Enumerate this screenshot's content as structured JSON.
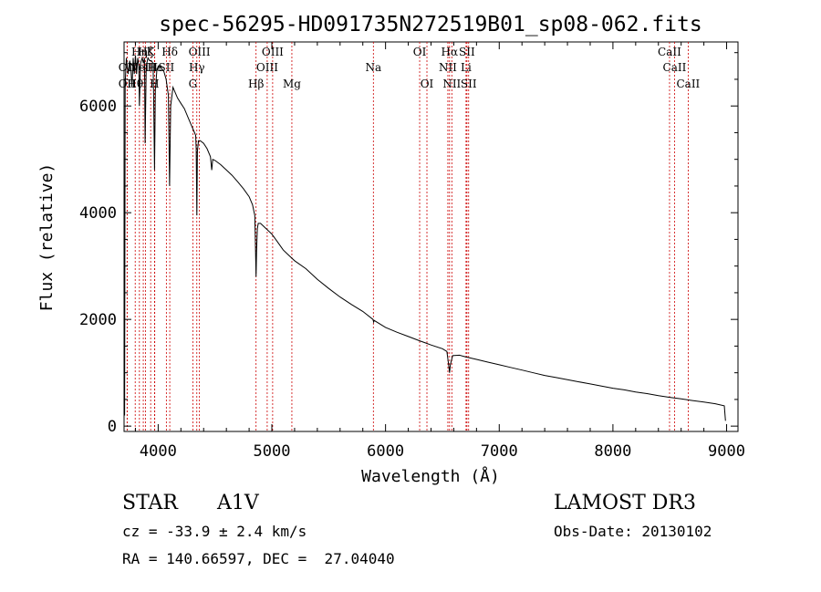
{
  "chart_data": {
    "type": "line",
    "title": "spec-56295-HD091735N272519B01_sp08-062.fits",
    "xlabel": "Wavelength (Å)",
    "ylabel": "Flux (relative)",
    "xlim": [
      3700,
      9100
    ],
    "ylim": [
      -100,
      7200
    ],
    "xticks": [
      4000,
      5000,
      6000,
      7000,
      8000,
      9000
    ],
    "xtick_labels": [
      "4000",
      "5000",
      "6000",
      "7000",
      "8000",
      "9000"
    ],
    "yticks": [
      0,
      2000,
      4000,
      6000
    ],
    "ytick_labels": [
      "0",
      "2000",
      "4000",
      "6000"
    ],
    "series": [
      {
        "name": "spectrum",
        "points": [
          [
            3700,
            2600
          ],
          [
            3705,
            200
          ],
          [
            3710,
            6400
          ],
          [
            3720,
            6900
          ],
          [
            3735,
            6600
          ],
          [
            3750,
            6850
          ],
          [
            3760,
            6700
          ],
          [
            3770,
            6350
          ],
          [
            3780,
            6900
          ],
          [
            3790,
            6600
          ],
          [
            3800,
            6950
          ],
          [
            3810,
            6600
          ],
          [
            3820,
            6900
          ],
          [
            3830,
            6750
          ],
          [
            3835,
            6000
          ],
          [
            3845,
            6800
          ],
          [
            3860,
            6900
          ],
          [
            3870,
            6800
          ],
          [
            3880,
            6900
          ],
          [
            3885,
            5300
          ],
          [
            3895,
            6750
          ],
          [
            3910,
            6900
          ],
          [
            3925,
            6850
          ],
          [
            3940,
            6850
          ],
          [
            3955,
            6800
          ],
          [
            3960,
            6200
          ],
          [
            3968,
            4800
          ],
          [
            3975,
            6300
          ],
          [
            3990,
            6700
          ],
          [
            4010,
            6750
          ],
          [
            4030,
            6700
          ],
          [
            4050,
            6650
          ],
          [
            4070,
            6500
          ],
          [
            4090,
            6200
          ],
          [
            4100,
            4500
          ],
          [
            4110,
            6000
          ],
          [
            4130,
            6350
          ],
          [
            4150,
            6250
          ],
          [
            4170,
            6150
          ],
          [
            4200,
            6050
          ],
          [
            4230,
            5950
          ],
          [
            4260,
            5800
          ],
          [
            4290,
            5650
          ],
          [
            4310,
            5550
          ],
          [
            4330,
            5450
          ],
          [
            4335,
            5200
          ],
          [
            4340,
            3950
          ],
          [
            4345,
            5150
          ],
          [
            4355,
            5350
          ],
          [
            4370,
            5350
          ],
          [
            4400,
            5300
          ],
          [
            4430,
            5200
          ],
          [
            4460,
            5050
          ],
          [
            4471,
            4800
          ],
          [
            4480,
            5000
          ],
          [
            4500,
            4980
          ],
          [
            4550,
            4900
          ],
          [
            4600,
            4800
          ],
          [
            4650,
            4700
          ],
          [
            4700,
            4580
          ],
          [
            4750,
            4450
          ],
          [
            4800,
            4300
          ],
          [
            4830,
            4150
          ],
          [
            4850,
            3950
          ],
          [
            4855,
            3500
          ],
          [
            4861,
            2800
          ],
          [
            4866,
            3300
          ],
          [
            4872,
            3700
          ],
          [
            4880,
            3800
          ],
          [
            4900,
            3800
          ],
          [
            4950,
            3700
          ],
          [
            5000,
            3600
          ],
          [
            5050,
            3450
          ],
          [
            5100,
            3300
          ],
          [
            5150,
            3200
          ],
          [
            5200,
            3100
          ],
          [
            5300,
            2950
          ],
          [
            5400,
            2750
          ],
          [
            5500,
            2580
          ],
          [
            5600,
            2420
          ],
          [
            5700,
            2280
          ],
          [
            5800,
            2150
          ],
          [
            5890,
            2000
          ],
          [
            5895,
            1950
          ],
          [
            5900,
            1980
          ],
          [
            6000,
            1850
          ],
          [
            6100,
            1760
          ],
          [
            6200,
            1680
          ],
          [
            6300,
            1600
          ],
          [
            6350,
            1560
          ],
          [
            6400,
            1520
          ],
          [
            6500,
            1450
          ],
          [
            6540,
            1400
          ],
          [
            6555,
            1150
          ],
          [
            6563,
            1000
          ],
          [
            6570,
            1150
          ],
          [
            6590,
            1320
          ],
          [
            6650,
            1330
          ],
          [
            6700,
            1300
          ],
          [
            6800,
            1250
          ],
          [
            6900,
            1200
          ],
          [
            7000,
            1150
          ],
          [
            7100,
            1100
          ],
          [
            7200,
            1050
          ],
          [
            7300,
            1000
          ],
          [
            7400,
            950
          ],
          [
            7500,
            910
          ],
          [
            7600,
            870
          ],
          [
            7700,
            830
          ],
          [
            7800,
            790
          ],
          [
            7900,
            750
          ],
          [
            8000,
            710
          ],
          [
            8100,
            680
          ],
          [
            8200,
            640
          ],
          [
            8300,
            610
          ],
          [
            8400,
            570
          ],
          [
            8500,
            540
          ],
          [
            8600,
            510
          ],
          [
            8700,
            480
          ],
          [
            8800,
            450
          ],
          [
            8900,
            420
          ],
          [
            8980,
            380
          ],
          [
            8990,
            100
          ]
        ]
      }
    ],
    "lines_top": [
      {
        "label": "Hα",
        "x": 6563,
        "row": 0
      },
      {
        "label": "SII",
        "x": 6716,
        "row": 0
      },
      {
        "label": "OI",
        "x": 6300,
        "row": 0
      },
      {
        "label": "OIII",
        "x": 5007,
        "row": 0
      },
      {
        "label": "Hδ",
        "x": 4102,
        "row": 0
      },
      {
        "label": "K",
        "x": 3934,
        "row": 0
      },
      {
        "label": "Hζ",
        "x": 3889,
        "row": 0
      },
      {
        "label": "CaII",
        "x": 8498,
        "row": 0
      },
      {
        "label": "OIII",
        "x": 4363,
        "row": 0
      },
      {
        "label": "Hη",
        "x": 3835,
        "row": 0
      }
    ],
    "lines_mid": [
      {
        "label": "OII",
        "x": 3727,
        "row": 1
      },
      {
        "label": "Hε",
        "x": 3970,
        "row": 1
      },
      {
        "label": "NeIII",
        "x": 3869,
        "row": 1
      },
      {
        "label": "SII",
        "x": 4072,
        "row": 1
      },
      {
        "label": "Hγ",
        "x": 4340,
        "row": 1
      },
      {
        "label": "OIII",
        "x": 4959,
        "row": 1
      },
      {
        "label": "Na",
        "x": 5893,
        "row": 1
      },
      {
        "label": "NII",
        "x": 6548,
        "row": 1
      },
      {
        "label": "Li",
        "x": 6708,
        "row": 1
      },
      {
        "label": "CaII",
        "x": 8542,
        "row": 1
      }
    ],
    "lines_low": [
      {
        "label": "OII",
        "x": 3727,
        "row": 2
      },
      {
        "label": "Hθ",
        "x": 3798,
        "row": 2
      },
      {
        "label": "H",
        "x": 3968,
        "row": 2
      },
      {
        "label": "G",
        "x": 4305,
        "row": 2
      },
      {
        "label": "Hβ",
        "x": 4861,
        "row": 2
      },
      {
        "label": "Mg",
        "x": 5176,
        "row": 2
      },
      {
        "label": "OI",
        "x": 6364,
        "row": 2
      },
      {
        "label": "NII",
        "x": 6583,
        "row": 2
      },
      {
        "label": "SII",
        "x": 6731,
        "row": 2
      },
      {
        "label": "CaII",
        "x": 8662,
        "row": 2
      }
    ]
  },
  "info": {
    "class": "STAR",
    "subclass": "A1V",
    "survey": "LAMOST DR3",
    "cz": "cz = -33.9 ± 2.4 km/s",
    "obs_date": "Obs-Date: 20130102",
    "radec": "RA = 140.66597, DEC =  27.04040"
  },
  "colors": {
    "axis": "#000000",
    "spectrum": "#000000",
    "line_markers": "#cc0000"
  }
}
